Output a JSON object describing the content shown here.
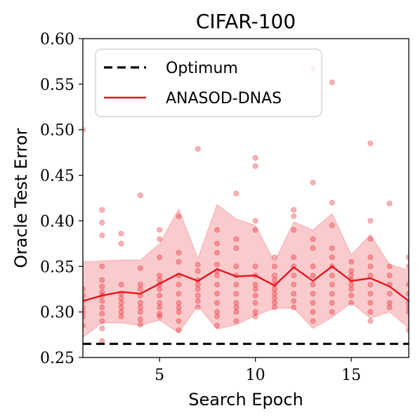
{
  "chart_data": {
    "type": "line",
    "title": "CIFAR-100",
    "xlabel": "Search Epoch",
    "ylabel": "Oracle Test Error",
    "xlim": [
      1,
      18
    ],
    "ylim": [
      0.25,
      0.6
    ],
    "xticks": [
      5,
      10,
      15
    ],
    "yticks": [
      0.25,
      0.3,
      0.35,
      0.4,
      0.45,
      0.5,
      0.55,
      0.6
    ],
    "grid": false,
    "legend_position": "top-left",
    "colors": {
      "series": "#e8141c",
      "band": "#f4a7a9",
      "optimum": "#000000",
      "points": "#f06b6e"
    },
    "series": [
      {
        "name": "Optimum",
        "style": "dashed",
        "x": [
          1,
          18
        ],
        "y": [
          0.265,
          0.265
        ]
      },
      {
        "name": "ANASOD-DNAS",
        "style": "solid",
        "x": [
          1,
          2,
          3,
          4,
          5,
          6,
          7,
          8,
          9,
          10,
          11,
          12,
          13,
          14,
          15,
          16,
          17,
          18
        ],
        "y": [
          0.312,
          0.318,
          0.322,
          0.32,
          0.331,
          0.342,
          0.334,
          0.347,
          0.339,
          0.34,
          0.329,
          0.349,
          0.334,
          0.35,
          0.334,
          0.337,
          0.328,
          0.312
        ],
        "band_upper": [
          0.355,
          0.356,
          0.357,
          0.357,
          0.375,
          0.413,
          0.359,
          0.418,
          0.402,
          0.395,
          0.355,
          0.399,
          0.39,
          0.408,
          0.363,
          0.385,
          0.352,
          0.346
        ],
        "band_lower": [
          0.272,
          0.288,
          0.288,
          0.285,
          0.291,
          0.277,
          0.307,
          0.281,
          0.286,
          0.296,
          0.304,
          0.304,
          0.282,
          0.294,
          0.31,
          0.293,
          0.3,
          0.282
        ]
      }
    ],
    "scatter_points": [
      [
        1,
        0.5
      ],
      [
        1,
        0.325
      ],
      [
        1,
        0.318
      ],
      [
        1,
        0.312
      ],
      [
        1,
        0.305
      ],
      [
        1,
        0.3
      ],
      [
        1,
        0.295
      ],
      [
        1,
        0.285
      ],
      [
        2,
        0.412
      ],
      [
        2,
        0.398
      ],
      [
        2,
        0.384
      ],
      [
        2,
        0.35
      ],
      [
        2,
        0.335
      ],
      [
        2,
        0.328
      ],
      [
        2,
        0.322
      ],
      [
        2,
        0.318
      ],
      [
        2,
        0.312
      ],
      [
        2,
        0.305
      ],
      [
        2,
        0.298
      ],
      [
        2,
        0.29
      ],
      [
        2,
        0.282
      ],
      [
        2,
        0.268
      ],
      [
        3,
        0.386
      ],
      [
        3,
        0.375
      ],
      [
        3,
        0.33
      ],
      [
        3,
        0.32
      ],
      [
        3,
        0.315
      ],
      [
        3,
        0.31
      ],
      [
        3,
        0.305
      ],
      [
        3,
        0.3
      ],
      [
        3,
        0.295
      ],
      [
        4,
        0.428
      ],
      [
        4,
        0.348
      ],
      [
        4,
        0.33
      ],
      [
        4,
        0.325
      ],
      [
        4,
        0.318
      ],
      [
        4,
        0.31
      ],
      [
        4,
        0.305
      ],
      [
        4,
        0.3
      ],
      [
        4,
        0.292
      ],
      [
        4,
        0.286
      ],
      [
        5,
        0.39
      ],
      [
        5,
        0.38
      ],
      [
        5,
        0.36
      ],
      [
        5,
        0.34
      ],
      [
        5,
        0.335
      ],
      [
        5,
        0.33
      ],
      [
        5,
        0.325
      ],
      [
        5,
        0.318
      ],
      [
        5,
        0.31
      ],
      [
        5,
        0.305
      ],
      [
        5,
        0.298
      ],
      [
        5,
        0.295
      ],
      [
        6,
        0.405
      ],
      [
        6,
        0.365
      ],
      [
        6,
        0.355
      ],
      [
        6,
        0.34
      ],
      [
        6,
        0.33
      ],
      [
        6,
        0.32
      ],
      [
        6,
        0.31
      ],
      [
        6,
        0.305
      ],
      [
        6,
        0.3
      ],
      [
        6,
        0.29
      ],
      [
        6,
        0.28
      ],
      [
        7,
        0.479
      ],
      [
        7,
        0.352
      ],
      [
        7,
        0.345
      ],
      [
        7,
        0.335
      ],
      [
        7,
        0.33
      ],
      [
        7,
        0.325
      ],
      [
        7,
        0.318
      ],
      [
        7,
        0.312
      ],
      [
        7,
        0.305
      ],
      [
        8,
        0.39
      ],
      [
        8,
        0.375
      ],
      [
        8,
        0.365
      ],
      [
        8,
        0.352
      ],
      [
        8,
        0.345
      ],
      [
        8,
        0.34
      ],
      [
        8,
        0.33
      ],
      [
        8,
        0.32
      ],
      [
        8,
        0.31
      ],
      [
        8,
        0.3
      ],
      [
        8,
        0.295
      ],
      [
        8,
        0.285
      ],
      [
        9,
        0.563
      ],
      [
        9,
        0.43
      ],
      [
        9,
        0.38
      ],
      [
        9,
        0.37
      ],
      [
        9,
        0.35
      ],
      [
        9,
        0.34
      ],
      [
        9,
        0.33
      ],
      [
        9,
        0.32
      ],
      [
        9,
        0.31
      ],
      [
        9,
        0.305
      ],
      [
        9,
        0.3
      ],
      [
        9,
        0.29
      ],
      [
        10,
        0.469
      ],
      [
        10,
        0.46
      ],
      [
        10,
        0.4
      ],
      [
        10,
        0.39
      ],
      [
        10,
        0.35
      ],
      [
        10,
        0.34
      ],
      [
        10,
        0.33
      ],
      [
        10,
        0.325
      ],
      [
        10,
        0.318
      ],
      [
        10,
        0.31
      ],
      [
        10,
        0.3
      ],
      [
        10,
        0.295
      ],
      [
        11,
        0.36
      ],
      [
        11,
        0.35
      ],
      [
        11,
        0.34
      ],
      [
        11,
        0.335
      ],
      [
        11,
        0.33
      ],
      [
        11,
        0.325
      ],
      [
        11,
        0.32
      ],
      [
        11,
        0.315
      ],
      [
        11,
        0.31
      ],
      [
        11,
        0.305
      ],
      [
        12,
        0.412
      ],
      [
        12,
        0.405
      ],
      [
        12,
        0.39
      ],
      [
        12,
        0.36
      ],
      [
        12,
        0.35
      ],
      [
        12,
        0.34
      ],
      [
        12,
        0.33
      ],
      [
        12,
        0.32
      ],
      [
        12,
        0.312
      ],
      [
        12,
        0.305
      ],
      [
        13,
        0.567
      ],
      [
        13,
        0.442
      ],
      [
        13,
        0.38
      ],
      [
        13,
        0.37
      ],
      [
        13,
        0.35
      ],
      [
        13,
        0.34
      ],
      [
        13,
        0.33
      ],
      [
        13,
        0.32
      ],
      [
        13,
        0.31
      ],
      [
        13,
        0.3
      ],
      [
        13,
        0.29
      ],
      [
        14,
        0.552
      ],
      [
        14,
        0.42
      ],
      [
        14,
        0.395
      ],
      [
        14,
        0.37
      ],
      [
        14,
        0.36
      ],
      [
        14,
        0.35
      ],
      [
        14,
        0.34
      ],
      [
        14,
        0.33
      ],
      [
        14,
        0.32
      ],
      [
        14,
        0.31
      ],
      [
        14,
        0.3
      ],
      [
        15,
        0.355
      ],
      [
        15,
        0.345
      ],
      [
        15,
        0.34
      ],
      [
        15,
        0.335
      ],
      [
        15,
        0.33
      ],
      [
        15,
        0.325
      ],
      [
        15,
        0.318
      ],
      [
        15,
        0.31
      ],
      [
        16,
        0.485
      ],
      [
        16,
        0.4
      ],
      [
        16,
        0.38
      ],
      [
        16,
        0.36
      ],
      [
        16,
        0.35
      ],
      [
        16,
        0.34
      ],
      [
        16,
        0.33
      ],
      [
        16,
        0.32
      ],
      [
        16,
        0.31
      ],
      [
        16,
        0.3
      ],
      [
        16,
        0.29
      ],
      [
        17,
        0.419
      ],
      [
        17,
        0.35
      ],
      [
        17,
        0.34
      ],
      [
        17,
        0.33
      ],
      [
        17,
        0.32
      ],
      [
        17,
        0.31
      ],
      [
        17,
        0.305
      ],
      [
        18,
        0.36
      ],
      [
        18,
        0.35
      ],
      [
        18,
        0.33
      ],
      [
        18,
        0.32
      ],
      [
        18,
        0.31
      ],
      [
        18,
        0.305
      ],
      [
        18,
        0.3
      ],
      [
        18,
        0.28
      ]
    ]
  }
}
